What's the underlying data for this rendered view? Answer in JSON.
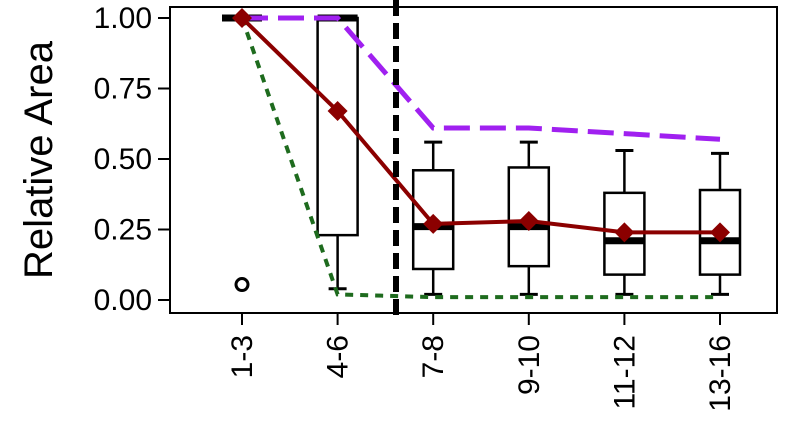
{
  "chart_data": {
    "type": "box",
    "ylabel": "Relative Area",
    "xlabel": "",
    "title": "",
    "ylim": [
      0,
      1.05
    ],
    "yticks": [
      "0.00",
      "0.25",
      "0.50",
      "0.75",
      "1.00"
    ],
    "ytick_values": [
      0,
      0.25,
      0.5,
      0.75,
      1.0
    ],
    "categories": [
      "1-3",
      "4-6",
      "7-8",
      "9-10",
      "11-12",
      "13-16"
    ],
    "boxes": [
      {
        "category": "1-3",
        "whisker_low": 1.0,
        "q1": 1.0,
        "median": 1.0,
        "q3": 1.0,
        "whisker_high": 1.0,
        "outliers": [
          0.03
        ]
      },
      {
        "category": "4-6",
        "whisker_low": 0.04,
        "q1": 0.23,
        "median": 1.0,
        "q3": 1.0,
        "whisker_high": 1.0,
        "outliers": []
      },
      {
        "category": "7-8",
        "whisker_low": 0.02,
        "q1": 0.11,
        "median": 0.26,
        "q3": 0.46,
        "whisker_high": 0.56,
        "outliers": []
      },
      {
        "category": "9-10",
        "whisker_low": 0.02,
        "q1": 0.12,
        "median": 0.26,
        "q3": 0.47,
        "whisker_high": 0.56,
        "outliers": []
      },
      {
        "category": "11-12",
        "whisker_low": 0.02,
        "q1": 0.09,
        "median": 0.21,
        "q3": 0.38,
        "whisker_high": 0.53,
        "outliers": []
      },
      {
        "category": "13-16",
        "whisker_low": 0.02,
        "q1": 0.09,
        "median": 0.21,
        "q3": 0.39,
        "whisker_high": 0.52,
        "outliers": []
      }
    ],
    "series": [
      {
        "style": "solid-diamond",
        "color": "#8b0000",
        "values": [
          1.0,
          0.67,
          0.27,
          0.28,
          0.24,
          0.24
        ]
      },
      {
        "style": "dashed",
        "color": "#a020f0",
        "values": [
          1.0,
          1.0,
          0.61,
          0.61,
          0.59,
          0.57
        ]
      },
      {
        "style": "dotted",
        "color": "#1e6b1e",
        "values": [
          1.0,
          0.02,
          0.01,
          0.01,
          0.01,
          0.01
        ]
      }
    ],
    "divider": {
      "between": [
        "4-6",
        "7-8"
      ],
      "style": "dashed",
      "color": "#000000"
    },
    "grid": false,
    "legend": "none"
  }
}
